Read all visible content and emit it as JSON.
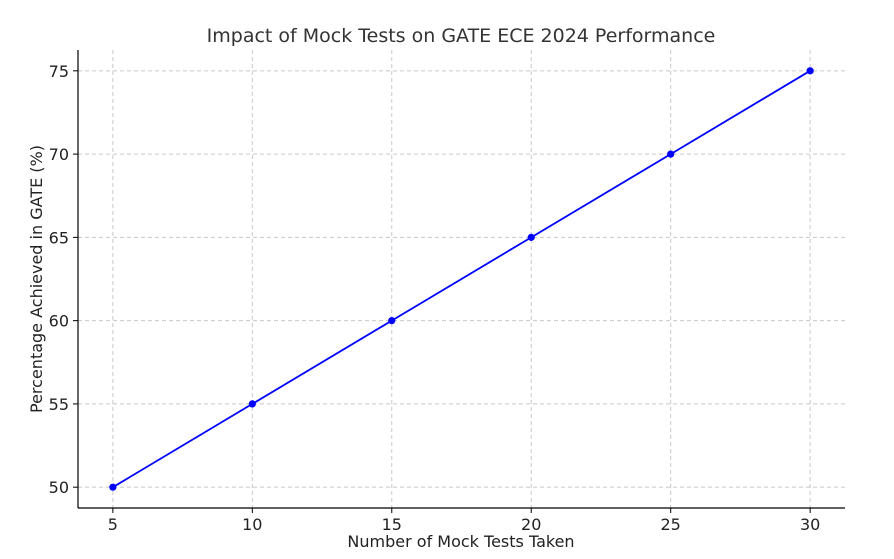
{
  "chart_data": {
    "type": "line",
    "title": "Impact of Mock Tests on GATE ECE 2024 Performance",
    "xlabel": "Number of Mock Tests Taken",
    "ylabel": "Percentage Achieved in GATE (%)",
    "xlim": [
      3.75,
      31.25
    ],
    "ylim": [
      48.75,
      76.25
    ],
    "grid": true,
    "x_ticks": [
      5,
      10,
      15,
      20,
      25,
      30
    ],
    "y_ticks": [
      50,
      55,
      60,
      65,
      70,
      75
    ],
    "series": [
      {
        "name": "Percentage",
        "color": "#0000ff",
        "marker": "circle",
        "x": [
          5,
          10,
          15,
          20,
          25,
          30
        ],
        "values": [
          50,
          55,
          60,
          65,
          70,
          75
        ]
      }
    ]
  }
}
